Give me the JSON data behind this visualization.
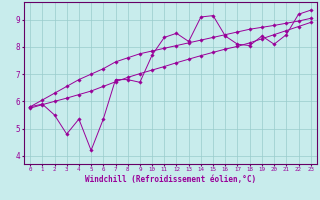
{
  "xlabel": "Windchill (Refroidissement éolien,°C)",
  "bg_color": "#c8ecec",
  "line_color": "#990099",
  "grid_color": "#99cccc",
  "axis_color": "#660066",
  "xlim": [
    -0.5,
    23.5
  ],
  "ylim": [
    3.7,
    9.65
  ],
  "xticks": [
    0,
    1,
    2,
    3,
    4,
    5,
    6,
    7,
    8,
    9,
    10,
    11,
    12,
    13,
    14,
    15,
    16,
    17,
    18,
    19,
    20,
    21,
    22,
    23
  ],
  "yticks": [
    4,
    5,
    6,
    7,
    8,
    9
  ],
  "series": [
    [
      5.8,
      5.9,
      5.5,
      4.8,
      5.35,
      4.2,
      5.35,
      6.8,
      6.8,
      6.7,
      7.7,
      8.35,
      8.5,
      8.2,
      9.1,
      9.15,
      8.4,
      8.1,
      8.05,
      8.4,
      8.1,
      8.45,
      9.2,
      9.35
    ],
    [
      5.8,
      6.05,
      6.3,
      6.55,
      6.8,
      7.0,
      7.2,
      7.45,
      7.6,
      7.75,
      7.85,
      7.95,
      8.05,
      8.15,
      8.25,
      8.35,
      8.45,
      8.55,
      8.65,
      8.72,
      8.79,
      8.87,
      8.95,
      9.05
    ],
    [
      5.75,
      5.88,
      6.0,
      6.12,
      6.25,
      6.38,
      6.55,
      6.72,
      6.88,
      7.02,
      7.15,
      7.28,
      7.42,
      7.55,
      7.68,
      7.8,
      7.92,
      8.02,
      8.15,
      8.3,
      8.45,
      8.6,
      8.75,
      8.9
    ]
  ],
  "xlabel_fontsize": 5.5,
  "xtick_fontsize": 4.2,
  "ytick_fontsize": 5.5
}
